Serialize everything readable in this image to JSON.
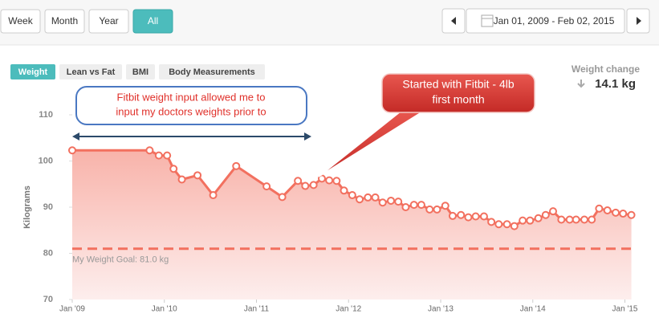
{
  "toolbar": {
    "ranges": [
      "Week",
      "Month",
      "Year",
      "All"
    ],
    "active": 3,
    "date_range": "Jan 01, 2009 - Feb 02, 2015"
  },
  "tabs": {
    "items": [
      "Weight",
      "Lean vs Fat",
      "BMI",
      "Body Measurements"
    ],
    "active": 0
  },
  "weight_change": {
    "label": "Weight change",
    "value": "14.1 kg"
  },
  "annotations": {
    "note": [
      "Fitbit weight input allowed me to",
      "input my doctors weights prior to"
    ],
    "callout": [
      "Started with Fitbit - 4lb",
      "first month"
    ]
  },
  "chart_data": {
    "type": "area-line",
    "y_label": "Kilograms",
    "color": "#f2705f",
    "x": [
      2009.0,
      2009.84,
      2009.94,
      2010.03,
      2010.1,
      2010.19,
      2010.36,
      2010.53,
      2010.78,
      2011.11,
      2011.28,
      2011.45,
      2011.53,
      2011.62,
      2011.71,
      2011.79,
      2011.87,
      2011.95,
      2012.04,
      2012.12,
      2012.21,
      2012.29,
      2012.37,
      2012.46,
      2012.54,
      2012.62,
      2012.71,
      2012.79,
      2012.88,
      2012.96,
      2013.05,
      2013.13,
      2013.22,
      2013.3,
      2013.38,
      2013.47,
      2013.55,
      2013.63,
      2013.72,
      2013.8,
      2013.89,
      2013.97,
      2014.06,
      2014.14,
      2014.22,
      2014.31,
      2014.4,
      2014.47,
      2014.56,
      2014.64,
      2014.72,
      2014.81,
      2014.9,
      2014.98,
      2015.07
    ],
    "values": [
      102.3,
      102.3,
      101.2,
      101.2,
      98.3,
      96,
      96.9,
      92.6,
      98.9,
      94.5,
      92.2,
      95.7,
      94.6,
      94.8,
      96.2,
      95.8,
      95.7,
      93.6,
      92.6,
      91.7,
      92.1,
      92.1,
      91,
      91.4,
      91.2,
      90,
      90.5,
      90.5,
      89.5,
      89.5,
      90.3,
      88.1,
      88.3,
      87.8,
      88,
      88,
      86.8,
      86.3,
      86.3,
      85.9,
      87.1,
      87.1,
      87.6,
      88.3,
      89.1,
      87.3,
      87.3,
      87.3,
      87.3,
      87.3,
      89.7,
      89.3,
      88.8,
      88.6,
      88.3
    ],
    "goal": 81,
    "goal_label": "My Weight Goal: 81.0 kg",
    "xlim": [
      2009,
      2015.1
    ],
    "xticks": [
      {
        "value": 2009,
        "label": "Jan '09"
      },
      {
        "value": 2010,
        "label": "Jan '10"
      },
      {
        "value": 2011,
        "label": "Jan '11"
      },
      {
        "value": 2012,
        "label": "Jan '12"
      },
      {
        "value": 2013,
        "label": "Jan '13"
      },
      {
        "value": 2014,
        "label": "Jan '14"
      },
      {
        "value": 2015,
        "label": "Jan '15"
      }
    ],
    "ylim": [
      70,
      110
    ],
    "yticks": [
      70,
      80,
      90,
      100,
      110
    ]
  }
}
